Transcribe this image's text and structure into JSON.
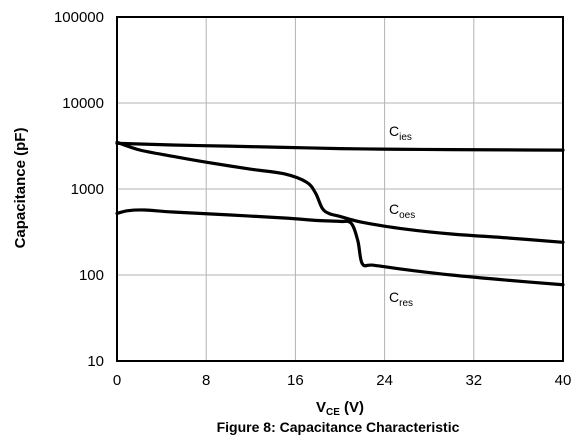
{
  "caption": "Figure 8: Capacitance Characteristic",
  "chart_data": {
    "type": "line",
    "xlabel": {
      "main": "V",
      "sub": "CE",
      "tail": " (V)"
    },
    "ylabel": "Capacitance (pF)",
    "xlim": [
      0,
      40
    ],
    "ylim": [
      10,
      100000
    ],
    "yscale": "log",
    "grid": true,
    "legend": "none",
    "xticks": [
      0,
      8,
      16,
      24,
      32,
      40
    ],
    "yticks": [
      10,
      100,
      1000,
      10000,
      100000
    ],
    "xtick_labels": [
      "0",
      "8",
      "16",
      "24",
      "32",
      "40"
    ],
    "ytick_labels": [
      "10",
      "100",
      "1000",
      "10000",
      "100000"
    ],
    "series": [
      {
        "name": "C_ies",
        "label_main": "C",
        "label_sub": "ies",
        "x": [
          0,
          5,
          10,
          15,
          20,
          25,
          30,
          35,
          40
        ],
        "y": [
          3400,
          3250,
          3150,
          3050,
          2950,
          2900,
          2870,
          2850,
          2830
        ]
      },
      {
        "name": "C_oes",
        "label_main": "C",
        "label_sub": "oes",
        "x": [
          0,
          2,
          5,
          8,
          12,
          15,
          17,
          17.8,
          18.4,
          19,
          20,
          22,
          26,
          30,
          35,
          40
        ],
        "y": [
          3500,
          2850,
          2400,
          2050,
          1700,
          1500,
          1200,
          900,
          600,
          520,
          480,
          410,
          340,
          300,
          270,
          240
        ]
      },
      {
        "name": "C_res",
        "label_main": "C",
        "label_sub": "res",
        "x": [
          0,
          1,
          2.5,
          5,
          10,
          15,
          18,
          20,
          21,
          21.6,
          22,
          23,
          26,
          30,
          35,
          40
        ],
        "y": [
          520,
          560,
          570,
          540,
          500,
          460,
          430,
          420,
          400,
          250,
          135,
          130,
          115,
          100,
          87,
          77
        ]
      }
    ]
  }
}
